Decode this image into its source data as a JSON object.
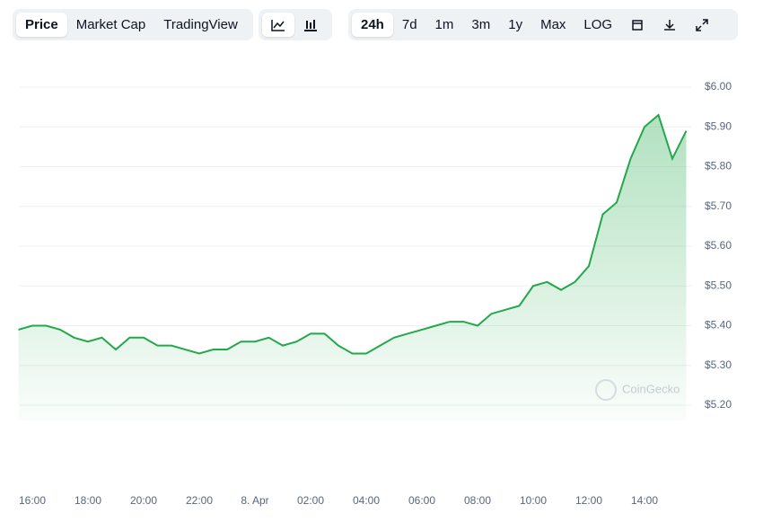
{
  "toolbar": {
    "tabs": [
      "Price",
      "Market Cap",
      "TradingView"
    ],
    "ranges": [
      "24h",
      "7d",
      "1m",
      "3m",
      "1y",
      "Max",
      "LOG"
    ]
  },
  "watermark": "CoinGecko",
  "chart_data": {
    "type": "area",
    "categories": [
      null,
      "16:00",
      null,
      null,
      null,
      "18:00",
      null,
      null,
      null,
      "20:00",
      null,
      null,
      null,
      "22:00",
      null,
      null,
      null,
      "8. Apr",
      null,
      null,
      null,
      "02:00",
      null,
      null,
      null,
      "04:00",
      null,
      null,
      null,
      "06:00",
      null,
      null,
      null,
      "08:00",
      null,
      null,
      null,
      "10:00",
      null,
      null,
      null,
      "12:00",
      null,
      null,
      null,
      "14:00",
      null,
      null,
      null
    ],
    "values": [
      5.39,
      5.4,
      5.4,
      5.39,
      5.37,
      5.36,
      5.37,
      5.34,
      5.37,
      5.37,
      5.35,
      5.35,
      5.34,
      5.33,
      5.34,
      5.34,
      5.36,
      5.36,
      5.37,
      5.35,
      5.36,
      5.38,
      5.38,
      5.35,
      5.33,
      5.33,
      5.35,
      5.37,
      5.38,
      5.39,
      5.4,
      5.41,
      5.41,
      5.4,
      5.43,
      5.44,
      5.45,
      5.5,
      5.51,
      5.49,
      5.51,
      5.55,
      5.68,
      5.71,
      5.82,
      5.9,
      5.93,
      5.82,
      5.89
    ],
    "color": "#22a94a",
    "ylim": [
      5.16,
      6.04
    ],
    "yticks": [
      {
        "value": 5.2,
        "label": "$5.20"
      },
      {
        "value": 5.3,
        "label": "$5.30"
      },
      {
        "value": 5.4,
        "label": "$5.40"
      },
      {
        "value": 5.5,
        "label": "$5.50"
      },
      {
        "value": 5.6,
        "label": "$5.60"
      },
      {
        "value": 5.7,
        "label": "$5.70"
      },
      {
        "value": 5.8,
        "label": "$5.80"
      },
      {
        "value": 5.9,
        "label": "$5.90"
      },
      {
        "value": 6.0,
        "label": "$6.00"
      }
    ],
    "grid": true
  }
}
